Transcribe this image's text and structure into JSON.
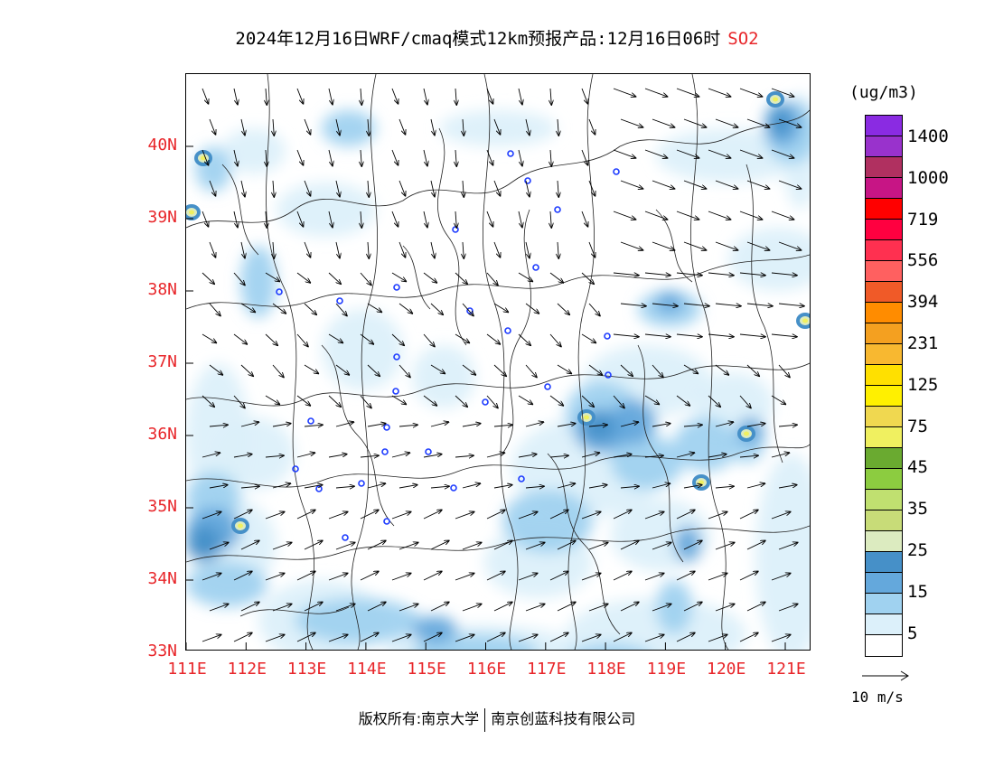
{
  "title": {
    "text": "2024年12月16日WRF/cmaq模式12km预报产品:12月16日06时",
    "pollutant": "SO2"
  },
  "unit": "(ug/m3)",
  "lat_labels": [
    "40N",
    "39N",
    "38N",
    "37N",
    "36N",
    "35N",
    "34N",
    "33N"
  ],
  "lon_labels": [
    "111E",
    "112E",
    "113E",
    "114E",
    "115E",
    "116E",
    "117E",
    "118E",
    "119E",
    "120E",
    "121E"
  ],
  "legend": {
    "colors": [
      "#8a2be2",
      "#9932cc",
      "#b03060",
      "#c71585",
      "#ff0000",
      "#ff0040",
      "#ff3050",
      "#ff6060",
      "#f05a28",
      "#ff8c00",
      "#f4a020",
      "#f8b830",
      "#ffe000",
      "#fff000",
      "#f0d850",
      "#f0f060",
      "#6aaa30",
      "#8ccc40",
      "#c0e070",
      "#c8dc78",
      "#dcebc0",
      "#4690c8",
      "#64a8dc",
      "#a0d2f0",
      "#dcf0fa",
      "#ffffff"
    ],
    "labels": [
      "1400",
      "1000",
      "719",
      "556",
      "394",
      "231",
      "125",
      "75",
      "45",
      "35",
      "25",
      "15",
      "5"
    ]
  },
  "wind_reference": {
    "label": "10  m/s"
  },
  "footer": {
    "copyright": "版权所有:南京大学",
    "company": "南京创蓝科技有限公司"
  }
}
